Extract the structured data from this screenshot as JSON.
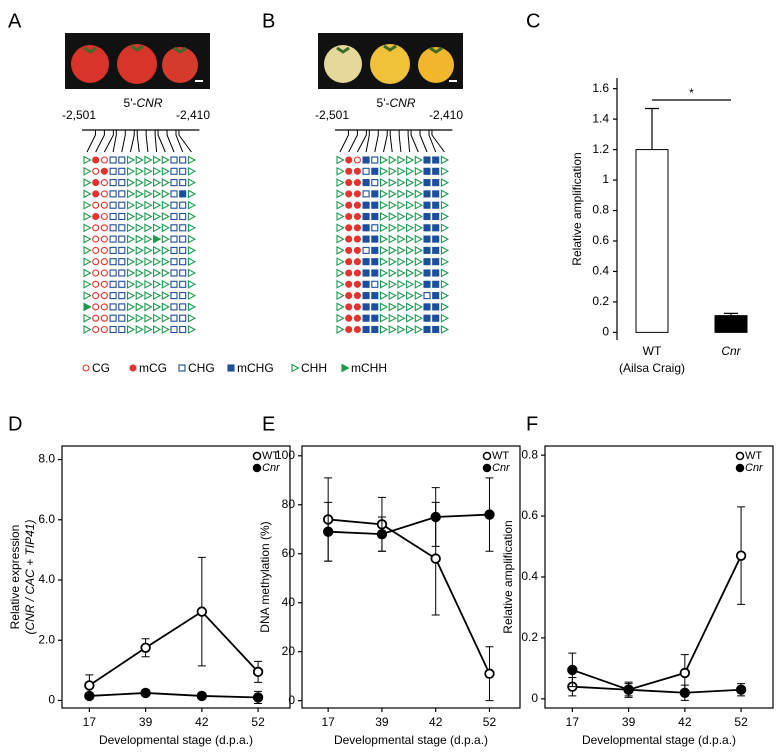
{
  "panel_labels": [
    "A",
    "B",
    "C",
    "D",
    "E",
    "F"
  ],
  "methylation_maps": [
    {
      "region_start": "-2,501",
      "region_end": "-2,410",
      "region_prefix": "5'-",
      "region_gene": "CNR",
      "rows": [
        [
          "CHH",
          "mCG",
          "CG",
          "CHG",
          "CHG",
          "CHH",
          "CHH",
          "CHH",
          "CHH",
          "CHH",
          "CHG",
          "CHG",
          "CHH"
        ],
        [
          "CHH",
          "CG",
          "mCG",
          "CHG",
          "CHG",
          "CHH",
          "CHH",
          "CHH",
          "CHH",
          "CHH",
          "CHG",
          "CHG",
          "CHH"
        ],
        [
          "CHH",
          "mCG",
          "CG",
          "CHG",
          "CHG",
          "CHH",
          "CHH",
          "CHH",
          "CHH",
          "CHH",
          "CHG",
          "CHG",
          "CHH"
        ],
        [
          "CHH",
          "mCG",
          "CG",
          "CHG",
          "CHG",
          "CHH",
          "CHH",
          "CHH",
          "CHH",
          "CHH",
          "CHG",
          "mCHG",
          "CHH"
        ],
        [
          "CHH",
          "CG",
          "CG",
          "CHG",
          "CHG",
          "CHH",
          "CHH",
          "CHH",
          "CHH",
          "CHH",
          "CHG",
          "CHG",
          "CHH"
        ],
        [
          "CHH",
          "mCG",
          "CG",
          "CHG",
          "CHG",
          "CHH",
          "CHH",
          "CHH",
          "CHH",
          "CHH",
          "CHG",
          "CHG",
          "CHH"
        ],
        [
          "CHH",
          "CG",
          "CG",
          "CHG",
          "CHG",
          "CHH",
          "CHH",
          "CHH",
          "CHH",
          "CHH",
          "CHG",
          "CHG",
          "CHH"
        ],
        [
          "CHH",
          "CG",
          "CG",
          "CHG",
          "CHG",
          "CHH",
          "CHH",
          "CHH",
          "mCHH",
          "CHH",
          "CHG",
          "CHG",
          "CHH"
        ],
        [
          "CHH",
          "CG",
          "CG",
          "CHG",
          "CHG",
          "CHH",
          "CHH",
          "CHH",
          "CHH",
          "CHH",
          "CHG",
          "CHG",
          "CHH"
        ],
        [
          "CHH",
          "CG",
          "CG",
          "CHG",
          "CHG",
          "CHH",
          "CHH",
          "CHH",
          "CHH",
          "CHH",
          "CHG",
          "CHG",
          "CHH"
        ],
        [
          "CHH",
          "CG",
          "CG",
          "CHG",
          "CHG",
          "CHH",
          "CHH",
          "CHH",
          "CHH",
          "CHH",
          "CHG",
          "CHG",
          "CHH"
        ],
        [
          "CHH",
          "CG",
          "CG",
          "CHG",
          "CHG",
          "CHH",
          "CHH",
          "CHH",
          "CHH",
          "CHH",
          "CHG",
          "CHG",
          "CHH"
        ],
        [
          "CHH",
          "CG",
          "CG",
          "CHG",
          "CHG",
          "CHH",
          "CHH",
          "CHH",
          "CHH",
          "CHH",
          "CHG",
          "CHG",
          "CHH"
        ],
        [
          "mCHH",
          "CG",
          "CG",
          "CHG",
          "CHG",
          "CHH",
          "CHH",
          "CHH",
          "CHH",
          "CHH",
          "CHG",
          "CHG",
          "CHH"
        ],
        [
          "CHH",
          "CG",
          "CG",
          "CHG",
          "CHG",
          "CHH",
          "CHH",
          "CHH",
          "CHH",
          "CHH",
          "CHG",
          "CHG",
          "CHH"
        ],
        [
          "CHH",
          "CG",
          "CG",
          "CHG",
          "CHG",
          "CHH",
          "CHH",
          "CHH",
          "CHH",
          "CHH",
          "CHG",
          "CHG",
          "CHH"
        ]
      ]
    },
    {
      "region_start": "-2,501",
      "region_end": "-2,410",
      "region_prefix": "5'-",
      "region_gene": "CNR",
      "rows": [
        [
          "CHH",
          "mCG",
          "CG",
          "mCHG",
          "CHG",
          "CHH",
          "CHH",
          "CHH",
          "CHH",
          "CHH",
          "mCHG",
          "mCHG",
          "CHH"
        ],
        [
          "CHH",
          "mCG",
          "mCG",
          "CHG",
          "mCHG",
          "CHH",
          "CHH",
          "CHH",
          "CHH",
          "CHH",
          "mCHG",
          "mCHG",
          "CHH"
        ],
        [
          "CHH",
          "mCG",
          "mCG",
          "mCHG",
          "CHG",
          "CHH",
          "CHH",
          "CHH",
          "CHH",
          "CHH",
          "mCHG",
          "mCHG",
          "CHH"
        ],
        [
          "CHH",
          "mCG",
          "mCG",
          "CHG",
          "mCHG",
          "CHH",
          "CHH",
          "CHH",
          "CHH",
          "CHH",
          "mCHG",
          "mCHG",
          "CHH"
        ],
        [
          "CHH",
          "mCG",
          "mCG",
          "mCHG",
          "mCHG",
          "CHH",
          "CHH",
          "CHH",
          "CHH",
          "CHH",
          "mCHG",
          "mCHG",
          "CHH"
        ],
        [
          "CHH",
          "mCG",
          "mCG",
          "mCHG",
          "mCHG",
          "CHH",
          "CHH",
          "CHH",
          "CHH",
          "CHH",
          "mCHG",
          "mCHG",
          "CHH"
        ],
        [
          "CHH",
          "mCG",
          "mCG",
          "mCHG",
          "CHG",
          "CHH",
          "CHH",
          "CHH",
          "CHH",
          "CHH",
          "mCHG",
          "mCHG",
          "CHH"
        ],
        [
          "CHH",
          "mCG",
          "mCG",
          "mCHG",
          "mCHG",
          "CHH",
          "CHH",
          "CHH",
          "CHH",
          "CHH",
          "mCHG",
          "mCHG",
          "CHH"
        ],
        [
          "CHH",
          "mCG",
          "mCG",
          "CHG",
          "mCHG",
          "CHH",
          "CHH",
          "CHH",
          "CHH",
          "CHH",
          "mCHG",
          "mCHG",
          "CHH"
        ],
        [
          "CHH",
          "mCG",
          "mCG",
          "mCHG",
          "mCHG",
          "CHH",
          "CHH",
          "CHH",
          "CHH",
          "CHH",
          "mCHG",
          "mCHG",
          "CHH"
        ],
        [
          "CHH",
          "mCG",
          "mCG",
          "mCHG",
          "mCHG",
          "CHH",
          "CHH",
          "CHH",
          "CHH",
          "CHH",
          "mCHG",
          "mCHG",
          "CHH"
        ],
        [
          "CHH",
          "mCG",
          "mCG",
          "mCHG",
          "CHG",
          "CHH",
          "CHH",
          "CHH",
          "CHH",
          "CHH",
          "mCHG",
          "mCHG",
          "CHH"
        ],
        [
          "CHH",
          "mCG",
          "mCG",
          "mCHG",
          "mCHG",
          "CHH",
          "CHH",
          "CHH",
          "CHH",
          "CHH",
          "CHG",
          "mCHG",
          "CHH"
        ],
        [
          "CHH",
          "mCG",
          "mCG",
          "mCHG",
          "mCHG",
          "CHH",
          "CHH",
          "CHH",
          "CHH",
          "CHH",
          "mCHG",
          "mCHG",
          "CHH"
        ],
        [
          "CHH",
          "mCG",
          "mCG",
          "mCHG",
          "mCHG",
          "CHH",
          "CHH",
          "CHH",
          "CHH",
          "CHH",
          "mCHG",
          "mCHG",
          "CHH"
        ],
        [
          "CHH",
          "mCG",
          "mCG",
          "mCHG",
          "mCHG",
          "CHH",
          "CHH",
          "CHH",
          "CHH",
          "CHH",
          "mCHG",
          "mCHG",
          "CHH"
        ]
      ]
    }
  ],
  "methylation_legend": [
    "CG",
    "mCG",
    "CHG",
    "mCHG",
    "CHH",
    "mCHH"
  ],
  "chart_data": [
    {
      "type": "bar",
      "y_label": "Relative amplification",
      "categories": [
        "WT",
        "Cnr"
      ],
      "category_notes": [
        "(Ailsa Craig)",
        null
      ],
      "values": [
        1.2,
        0.11
      ],
      "errors": [
        0.27,
        0.015
      ],
      "colors": [
        "#ffffff",
        "#000000"
      ],
      "ylim": [
        -0.05,
        1.67
      ],
      "yticks": [
        0,
        0.2,
        0.4,
        0.6,
        0.8,
        1,
        1.2,
        1.4,
        1.6
      ],
      "annotation": "*"
    },
    {
      "type": "line",
      "y_label": "Relative expression",
      "y_label_2": "(CNR / CAC + TIP41)",
      "x_label": "Developmental stage (d.p.a.)",
      "categories": [
        "17",
        "39",
        "42",
        "52"
      ],
      "ylim": [
        -0.25,
        8.45
      ],
      "yticks": [
        0,
        {
          "value": 2,
          "label": "2.0"
        },
        {
          "value": 4,
          "label": "4.0"
        },
        {
          "value": 6,
          "label": "6.0"
        },
        {
          "value": 8,
          "label": "8.0"
        }
      ],
      "series": [
        {
          "name": "WT",
          "color": "#ffffff",
          "values": [
            0.5,
            1.75,
            2.95,
            0.95
          ],
          "errors": [
            0.35,
            0.3,
            1.8,
            0.35
          ]
        },
        {
          "name": "Cnr",
          "color": "#000000",
          "values": [
            0.15,
            0.25,
            0.15,
            0.1
          ],
          "errors": [
            0.05,
            0.1,
            0.1,
            0.2
          ]
        }
      ]
    },
    {
      "type": "line",
      "y_label": "DNA methylation (%)",
      "x_label": "Developmental stage (d.p.a.)",
      "categories": [
        "17",
        "39",
        "42",
        "52"
      ],
      "ylim": [
        -3,
        104
      ],
      "yticks": [
        0,
        20,
        40,
        60,
        80,
        100
      ],
      "series": [
        {
          "name": "WT",
          "color": "#ffffff",
          "values": [
            74,
            72,
            58,
            11
          ],
          "errors": [
            17,
            11,
            23,
            11
          ]
        },
        {
          "name": "Cnr",
          "color": "#000000",
          "values": [
            69,
            68,
            75,
            76
          ],
          "errors": [
            12,
            7,
            12,
            15
          ]
        }
      ]
    },
    {
      "type": "line",
      "y_label": "Relative  amplification",
      "x_label": "Developmental stage (d.p.a.)",
      "categories": [
        "17",
        "39",
        "42",
        "52"
      ],
      "ylim": [
        -0.03,
        0.83
      ],
      "yticks": [
        0,
        0.2,
        0.4,
        0.6,
        0.8
      ],
      "series": [
        {
          "name": "WT",
          "color": "#ffffff",
          "values": [
            0.04,
            0.03,
            0.085,
            0.47
          ],
          "errors": [
            0.03,
            0.02,
            0.06,
            0.16
          ]
        },
        {
          "name": "Cnr",
          "color": "#000000",
          "values": [
            0.095,
            0.03,
            0.02,
            0.03
          ],
          "errors": [
            0.055,
            0.025,
            0.025,
            0.02
          ]
        }
      ]
    }
  ]
}
